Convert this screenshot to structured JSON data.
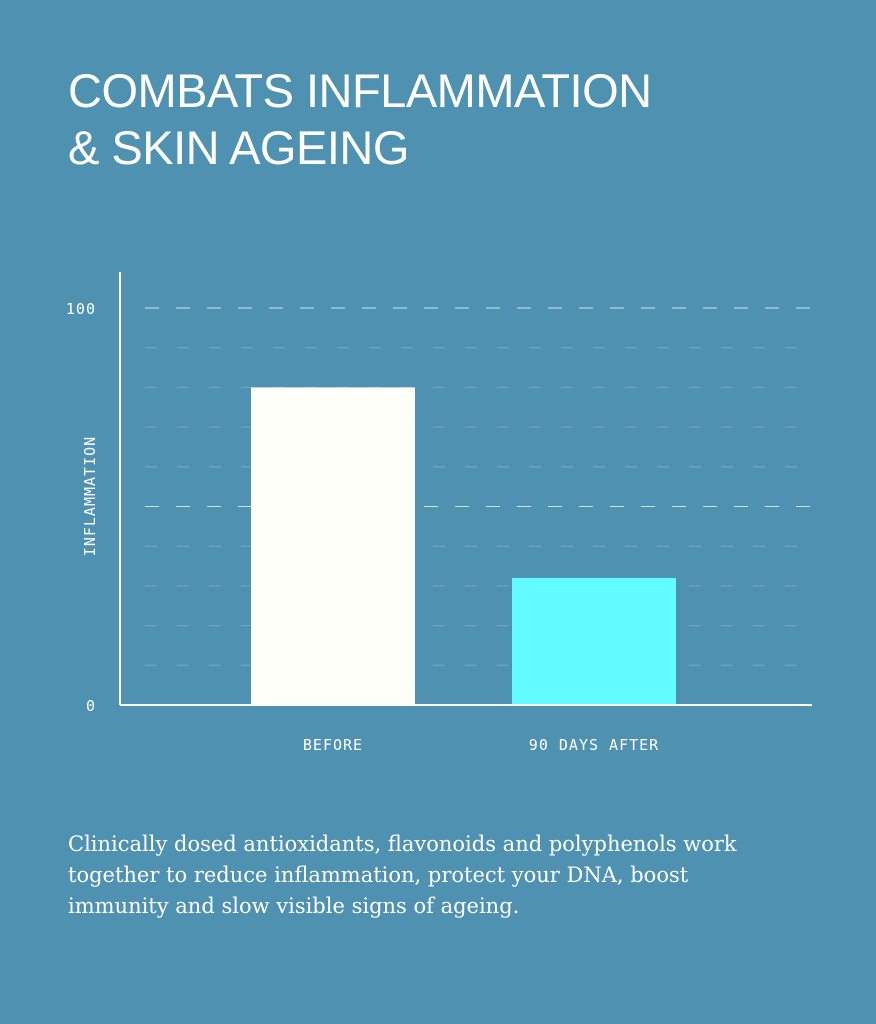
{
  "title": {
    "line1": "COMBATS INFLAMMATION",
    "line2": "& SKIN AGEING"
  },
  "description": "Clinically dosed antioxidants, flavonoids and polyphenols work together to reduce inflammation, protect your DNA, boost immunity and slow visible signs of ageing.",
  "colors": {
    "background": "#4f91b1",
    "before_bar": "#fdfff8",
    "after_bar": "#62fbff",
    "axis": "#ffffff"
  },
  "chart_data": {
    "type": "bar",
    "categories": [
      "BEFORE",
      "90 DAYS AFTER"
    ],
    "values": [
      80,
      32
    ],
    "ylabel": "INFLAMMATION",
    "ylim": [
      0,
      100
    ],
    "yticks": [
      "0",
      "100"
    ],
    "grid": true
  }
}
